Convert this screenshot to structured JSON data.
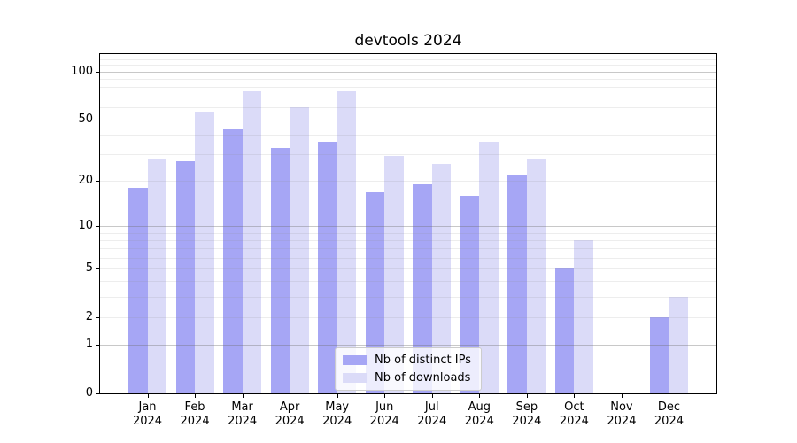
{
  "chart_data": {
    "type": "bar",
    "title": "devtools 2024",
    "categories": [
      "Jan 2024",
      "Feb 2024",
      "Mar 2024",
      "Apr 2024",
      "May 2024",
      "Jun 2024",
      "Jul 2024",
      "Aug 2024",
      "Sep 2024",
      "Oct 2024",
      "Nov 2024",
      "Dec 2024"
    ],
    "series": [
      {
        "name": "Nb of distinct IPs",
        "color": "#a6a6f5",
        "values": [
          18,
          27,
          43,
          33,
          36,
          17,
          19,
          16,
          22,
          5,
          0,
          2
        ]
      },
      {
        "name": "Nb of downloads",
        "color": "#dbdbf8",
        "values": [
          28,
          56,
          75,
          60,
          75,
          29,
          26,
          36,
          28,
          8,
          0,
          3
        ]
      }
    ],
    "y_scale": "log1p",
    "ylim": [
      0,
      129
    ],
    "y_ticks": [
      0,
      1,
      2,
      5,
      10,
      20,
      50,
      100
    ],
    "y_major_grid": [
      1,
      10,
      100
    ],
    "y_minor_grid": [
      2,
      3,
      4,
      5,
      6,
      7,
      8,
      9,
      20,
      30,
      40,
      50,
      60,
      70,
      80,
      90,
      110,
      120
    ],
    "grid": true,
    "legend_position": "lower center",
    "xlabel": "",
    "ylabel": ""
  },
  "colors": {
    "major_grid": "#b5b5b5",
    "minor_grid": "#e6e6e6",
    "axis": "#000000",
    "legend_border": "#cccccc",
    "background": "#ffffff"
  }
}
